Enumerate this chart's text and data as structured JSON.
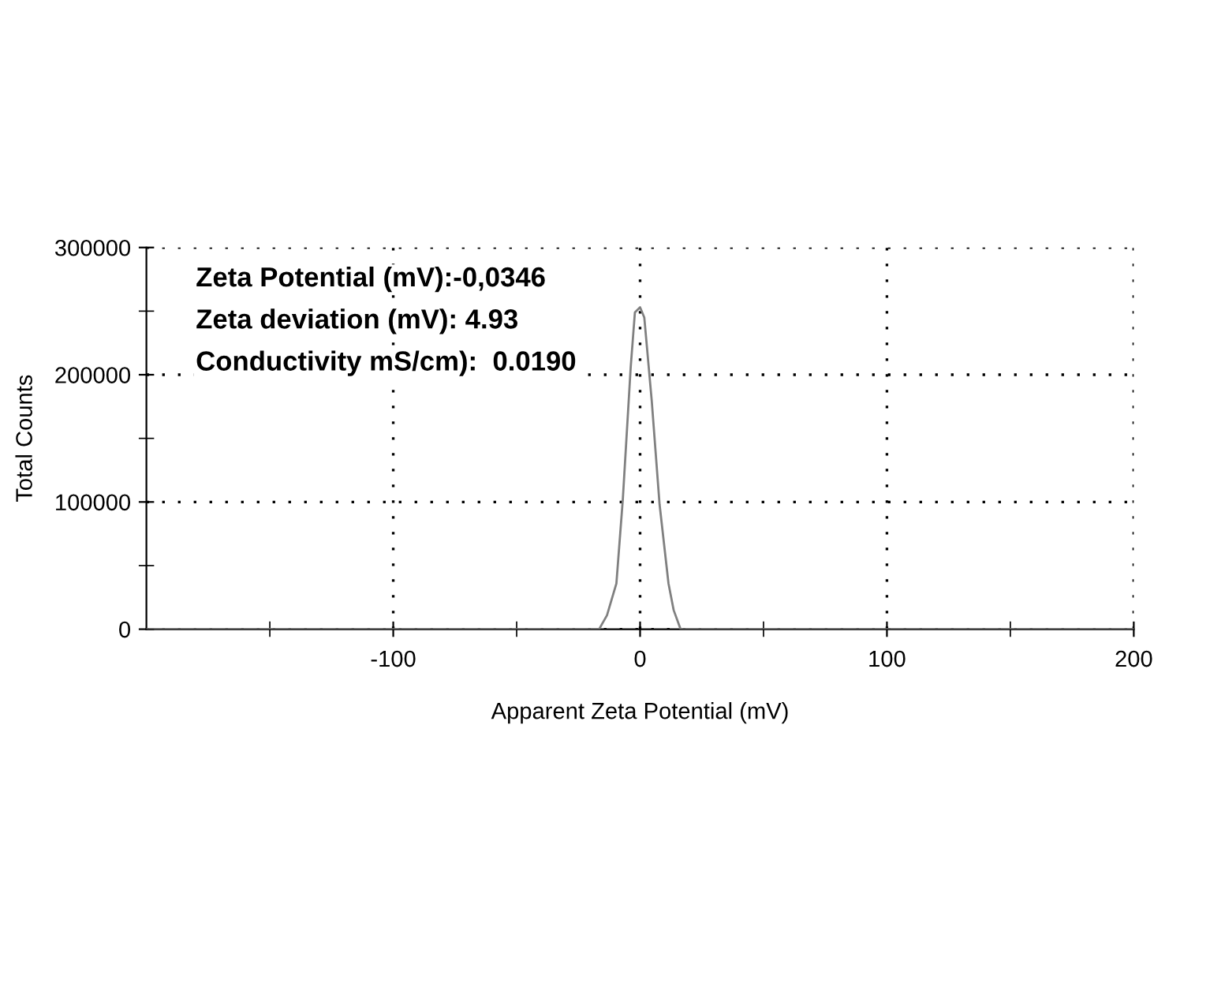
{
  "chart_data": {
    "type": "line",
    "xlabel": "Apparent Zeta Potential (mV)",
    "ylabel": "Total Counts",
    "x": [
      -200,
      -16.6,
      -13.4,
      -9.6,
      -7.0,
      -3.8,
      -2.1,
      0,
      1.7,
      4.7,
      7.9,
      11.5,
      13.6,
      16.4,
      200
    ],
    "series": [
      {
        "color": "#808080",
        "values": [
          0,
          0,
          11000,
          36000,
          102000,
          206000,
          249000,
          253000,
          245000,
          180000,
          98000,
          36000,
          15000,
          0,
          0
        ]
      }
    ],
    "xlim": [
      -200,
      200
    ],
    "xticks": [
      {
        "value": -150,
        "label": null
      },
      -100,
      {
        "value": -50,
        "label": null
      },
      0,
      {
        "value": 50,
        "label": null
      },
      100,
      {
        "value": 150,
        "label": null
      },
      200
    ],
    "ylim": [
      0,
      300000
    ],
    "yticks": [
      0,
      {
        "value": 50000,
        "label": null
      },
      100000,
      {
        "value": 150000,
        "label": null
      },
      200000,
      {
        "value": 250000,
        "label": null
      },
      300000
    ],
    "grid": true,
    "marker": "none",
    "line_style": "solid",
    "annotations": [
      "Zeta Potential (mV):-0,0346",
      "Zeta deviation (mV): 4.93",
      "Conductivity mS/cm):  0.0190"
    ]
  }
}
